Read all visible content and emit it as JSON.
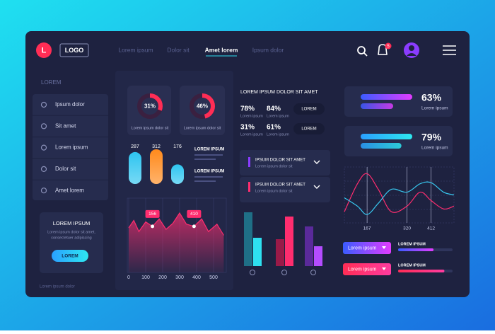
{
  "header": {
    "logo_letter": "L",
    "logo": "LOGO",
    "nav": [
      "Lorem ipsum",
      "Dolor sit",
      "Amet lorem",
      "Ipsum dolor"
    ],
    "notifications": 5
  },
  "sidebar": {
    "title": "LOREM",
    "menu": [
      "Ipsum dolor",
      "Sit amet",
      "Lorem ipsum",
      "Dolor sit",
      "Amet lorem"
    ],
    "card": {
      "title": "LOREM IPSUM",
      "text": [
        "Lorem ipsum dolor sit amet,",
        "consectetuer adipiscing"
      ],
      "button": "LOREM"
    },
    "footer": "Lorem ipsum dolor"
  },
  "donuts": [
    {
      "value": 31,
      "label": "31%",
      "caption": "Lorem ipsum dolor sit"
    },
    {
      "value": 46,
      "label": "46%",
      "caption": "Lorem ipsum dolor sit"
    }
  ],
  "capsule_bars": {
    "type": "bar",
    "values": [
      287,
      312,
      176
    ],
    "ylim": [
      0,
      350
    ],
    "colors": [
      "#2ec5f0",
      "#ff8a1c",
      "#2ec5f0"
    ],
    "notes": [
      "LOREM IPSUM",
      "LOREM IPSUM"
    ]
  },
  "line_chart": {
    "type": "line",
    "color": "#ff2d6f",
    "x": [
      0,
      30,
      60,
      100,
      140,
      180,
      220,
      260,
      300,
      340,
      385,
      430,
      470,
      520,
      560
    ],
    "values": [
      60,
      70,
      55,
      68,
      62,
      72,
      58,
      66,
      80,
      65,
      62,
      72,
      55,
      65,
      50
    ],
    "xlim": [
      0,
      575
    ],
    "ylim": [
      0,
      100
    ],
    "xticks": [
      0,
      100,
      200,
      300,
      400,
      500
    ],
    "annotations": [
      {
        "x": 140,
        "label": "156"
      },
      {
        "x": 385,
        "label": "410"
      }
    ]
  },
  "stats": {
    "title": "LOREM IPSUM DOLOR SIT AMET",
    "items": [
      {
        "value": 78,
        "label": "78%",
        "caption": "Lorem ipsum"
      },
      {
        "value": 84,
        "label": "84%",
        "caption": "Lorem ipsum"
      },
      {
        "value": 31,
        "label": "31%",
        "caption": "Lorem ipsum"
      },
      {
        "value": 61,
        "label": "61%",
        "caption": "Lorem ipsum"
      }
    ],
    "buttons": [
      "LOREM",
      "LOREM"
    ]
  },
  "dropdowns": [
    {
      "title": "IPSUM DOLOR  SIT AMET",
      "subtitle": "Lorem ipsum dolor sit",
      "color": "#8a3cff"
    },
    {
      "title": "IPSUM DOLOR  SIT AMET",
      "subtitle": "Lorem ipsum dolor sit",
      "color": "#ff2d6f"
    }
  ],
  "grouped_bars": {
    "type": "bar",
    "ylim": [
      0,
      80
    ],
    "groups": [
      {
        "values": [
          76,
          40
        ],
        "colors": [
          "#1f6f86",
          "#2ee0f0"
        ]
      },
      {
        "values": [
          38,
          70
        ],
        "colors": [
          "#9a1a48",
          "#ff2d6f"
        ]
      },
      {
        "values": [
          56,
          28
        ],
        "colors": [
          "#5a2a9a",
          "#b44cff"
        ]
      }
    ]
  },
  "progress": [
    {
      "value": 63,
      "label": "63%",
      "caption": "Lorem ipsum"
    },
    {
      "value": 79,
      "label": "79%",
      "caption": "Lorem ipsum"
    }
  ],
  "wave_chart": {
    "type": "line",
    "x": [
      80,
      130,
      167,
      210,
      260,
      320,
      370,
      412,
      460,
      500
    ],
    "xlim": [
      80,
      500
    ],
    "ylim": [
      0,
      100
    ],
    "xticks": [
      167,
      320,
      412
    ],
    "series": [
      {
        "color": "#ff2d6f",
        "values": [
          20,
          70,
          88,
          60,
          20,
          30,
          55,
          40,
          25,
          30
        ]
      },
      {
        "color": "#38c8f0",
        "values": [
          45,
          30,
          15,
          35,
          60,
          55,
          70,
          72,
          55,
          50
        ]
      }
    ]
  },
  "legend_items": [
    {
      "button": "Lorem ipsum",
      "title": "LOREM IPSUM",
      "value": 65
    },
    {
      "button": "Lorem ipsum",
      "title": "LOREM IPSUM",
      "value": 85
    }
  ]
}
